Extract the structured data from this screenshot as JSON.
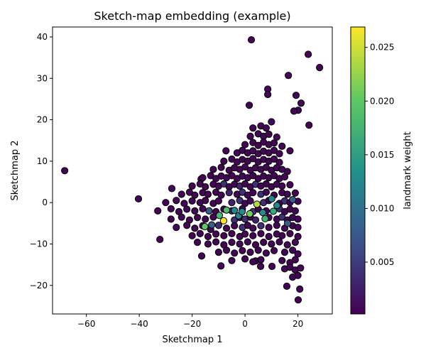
{
  "chart_data": {
    "type": "scatter",
    "title": "Sketch-map embedding (example)",
    "xlabel": "Sketchmap 1",
    "ylabel": "Sketchmap 2",
    "xlim": [
      -72.8,
      33.0
    ],
    "ylim": [
      -26.9,
      42.4
    ],
    "xticks": [
      -60,
      -40,
      -20,
      0,
      20
    ],
    "yticks": [
      -20,
      -10,
      0,
      10,
      20,
      30,
      40
    ],
    "grid": false,
    "colorbar": {
      "label": "landmark weight",
      "colormap": "viridis",
      "range": [
        0.00017,
        0.0269
      ],
      "ticks": [
        0.005,
        0.01,
        0.015,
        0.02,
        0.025
      ],
      "tick_labels": [
        "0.005",
        "0.010",
        "0.015",
        "0.020",
        "0.025"
      ]
    },
    "marker_edge_color": "#000000",
    "points": [
      [
        -68.2,
        7.7,
        0.0005
      ],
      [
        2.4,
        39.3,
        0.0005
      ],
      [
        23.9,
        35.8,
        0.0005
      ],
      [
        28.2,
        32.6,
        0.0005
      ],
      [
        16.4,
        30.7,
        0.0005
      ],
      [
        8.6,
        27.4,
        0.0005
      ],
      [
        8.6,
        26.1,
        0.0005
      ],
      [
        19.3,
        25.9,
        0.0005
      ],
      [
        21.2,
        24.0,
        0.0005
      ],
      [
        20.1,
        22.3,
        0.0005
      ],
      [
        18.5,
        22.1,
        0.0005
      ],
      [
        24.2,
        18.7,
        0.0005
      ],
      [
        1.6,
        23.5,
        0.0005
      ],
      [
        -40.3,
        0.9,
        0.0005
      ],
      [
        -32.2,
        -8.9,
        0.0005
      ],
      [
        -18,
        -9.6,
        0.0005
      ],
      [
        -16.4,
        -12.9,
        0.0005
      ],
      [
        -9.1,
        -15.3,
        0.0005
      ],
      [
        20.1,
        -23.5,
        0.0005
      ],
      [
        20.7,
        -20.9,
        0.0005
      ],
      [
        15.8,
        -20.2,
        0.0005
      ],
      [
        -27.7,
        3.4,
        0.0005
      ],
      [
        -7.2,
        12.5,
        0.0005
      ],
      [
        -16.6,
        5.7,
        0.0005
      ],
      [
        10.2,
        -15.4,
        0.0005
      ],
      [
        5.9,
        -15.4,
        0.0005
      ],
      [
        4.0,
        -14.1,
        0.0005
      ],
      [
        3,
        18,
        0.0005
      ],
      [
        6,
        18.5,
        0.0005
      ],
      [
        8,
        18,
        0.0005
      ],
      [
        10,
        19.5,
        0.0005
      ],
      [
        2,
        16,
        0.0005
      ],
      [
        5,
        16.6,
        0.0005
      ],
      [
        7,
        16,
        0.0005
      ],
      [
        9,
        16.5,
        0.0005
      ],
      [
        12,
        15.8,
        0.0005
      ],
      [
        0,
        14,
        0.0005
      ],
      [
        3,
        14.5,
        0.0005
      ],
      [
        5,
        13.8,
        0.0005
      ],
      [
        7,
        14.6,
        0.0005
      ],
      [
        9,
        14,
        0.0005
      ],
      [
        11,
        14.4,
        0.0005
      ],
      [
        14,
        13.6,
        0.0005
      ],
      [
        -3,
        12,
        0.0005
      ],
      [
        -1,
        12.6,
        0.0005
      ],
      [
        1,
        12,
        0.0005
      ],
      [
        3,
        12.5,
        0.0005
      ],
      [
        5,
        11.8,
        0.0005
      ],
      [
        7,
        12.4,
        0.0005
      ],
      [
        9,
        12,
        0.0005
      ],
      [
        11,
        12.6,
        0.0005
      ],
      [
        13,
        11.8,
        0.0005
      ],
      [
        17,
        12.5,
        0.0005
      ],
      [
        -8,
        10,
        0.0005
      ],
      [
        -5,
        10.5,
        0.0005
      ],
      [
        -3,
        9.8,
        0.0005
      ],
      [
        -1,
        10.4,
        0.0005
      ],
      [
        1,
        10,
        0.0005
      ],
      [
        3,
        10.6,
        0.0005
      ],
      [
        5,
        9.8,
        0.0005
      ],
      [
        7,
        10.4,
        0.0005
      ],
      [
        9,
        10,
        0.0005
      ],
      [
        11,
        10.5,
        0.0005
      ],
      [
        13,
        9.7,
        0.0005
      ],
      [
        -12,
        8,
        0.0005
      ],
      [
        -9,
        8.5,
        0.0005
      ],
      [
        -6,
        7.8,
        0.0005
      ],
      [
        -4,
        8.4,
        0.0005
      ],
      [
        -2,
        8,
        0.0005
      ],
      [
        0,
        8.6,
        0.0005
      ],
      [
        2,
        7.8,
        0.0005
      ],
      [
        4,
        8.4,
        0.0005
      ],
      [
        6,
        8,
        0.0005
      ],
      [
        8,
        8.5,
        0.0005
      ],
      [
        10,
        7.8,
        0.0005
      ],
      [
        12,
        8.4,
        0.0005
      ],
      [
        14,
        8,
        0.0005
      ],
      [
        16,
        7.5,
        0.0005
      ],
      [
        -16,
        6,
        0.0005
      ],
      [
        -13,
        6.5,
        0.0005
      ],
      [
        -11,
        5.8,
        0.0005
      ],
      [
        -9,
        6.4,
        0.0005
      ],
      [
        -7,
        6,
        0.0005
      ],
      [
        -5,
        6.5,
        0.0005
      ],
      [
        -3,
        5.8,
        0.0005
      ],
      [
        -1,
        6.4,
        0.0005
      ],
      [
        1,
        6,
        0.0005
      ],
      [
        3,
        6.5,
        0.0005
      ],
      [
        5,
        5.8,
        0.0005
      ],
      [
        7,
        6.4,
        0.0005
      ],
      [
        9,
        6,
        0.0005
      ],
      [
        11,
        6.5,
        0.0005
      ],
      [
        13,
        5.8,
        0.0005
      ],
      [
        15,
        6.2,
        0.0005
      ],
      [
        -20,
        4,
        0.0005
      ],
      [
        -17,
        4.5,
        0.0005
      ],
      [
        -15,
        3.8,
        0.0005
      ],
      [
        -12,
        4.4,
        0.0005
      ],
      [
        -10,
        4,
        0.0005
      ],
      [
        -8,
        4.5,
        0.004
      ],
      [
        -6,
        3.8,
        0.0005
      ],
      [
        -4,
        4.4,
        0.0005
      ],
      [
        -2,
        4,
        0.003
      ],
      [
        0,
        4.5,
        0.0005
      ],
      [
        2,
        3.8,
        0.0005
      ],
      [
        4,
        4.4,
        0.004
      ],
      [
        6,
        4,
        0.0005
      ],
      [
        8,
        4.5,
        0.0005
      ],
      [
        10,
        3.8,
        0.0005
      ],
      [
        12,
        4.4,
        0.0005
      ],
      [
        14,
        4,
        0.0005
      ],
      [
        17,
        4.3,
        0.0005
      ],
      [
        -24,
        2,
        0.0005
      ],
      [
        -21,
        2.5,
        0.0005
      ],
      [
        -19,
        1.8,
        0.0005
      ],
      [
        -16,
        2.4,
        0.0005
      ],
      [
        -14,
        2,
        0.0005
      ],
      [
        -11,
        2.5,
        0.0005
      ],
      [
        -9,
        1.8,
        0.0005
      ],
      [
        -6,
        2.4,
        0.003
      ],
      [
        -3,
        2,
        0.0005
      ],
      [
        -1,
        2.5,
        0.004
      ],
      [
        1,
        1.8,
        0.0005
      ],
      [
        3,
        2.4,
        0.0005
      ],
      [
        6,
        2,
        0.004
      ],
      [
        8,
        2.5,
        0.0005
      ],
      [
        11,
        1.8,
        0.0005
      ],
      [
        14,
        2.4,
        0.0005
      ],
      [
        16,
        2,
        0.0005
      ],
      [
        19,
        2.3,
        0.0005
      ],
      [
        -30,
        0,
        0.0005
      ],
      [
        -26,
        0.5,
        0.0005
      ],
      [
        -23,
        -0.2,
        0.0005
      ],
      [
        -20,
        0.4,
        0.0005
      ],
      [
        -17,
        0,
        0.0005
      ],
      [
        -15,
        0.5,
        0.0005
      ],
      [
        -12,
        -0.2,
        0.0005
      ],
      [
        -10,
        0.4,
        0.0005
      ],
      [
        -5,
        0,
        0.003
      ],
      [
        -2,
        0.5,
        0.004
      ],
      [
        0,
        -0.2,
        0.0005
      ],
      [
        2,
        0.4,
        0.0005
      ],
      [
        7,
        0,
        0.004
      ],
      [
        9,
        0.5,
        0.0005
      ],
      [
        13,
        -0.2,
        0.0005
      ],
      [
        15,
        0.4,
        0.004
      ],
      [
        17,
        0,
        0.0005
      ],
      [
        20,
        0.3,
        0.0005
      ],
      [
        -33,
        -2,
        0.0005
      ],
      [
        -28,
        -1.5,
        0.0005
      ],
      [
        -25,
        -2.2,
        0.0005
      ],
      [
        -22,
        -1.6,
        0.0005
      ],
      [
        -19,
        -2,
        0.0005
      ],
      [
        -16,
        -1.5,
        0.0005
      ],
      [
        -11,
        -2.2,
        0.0005
      ],
      [
        -8,
        -1.6,
        0.0005
      ],
      [
        -5,
        -2,
        0.003
      ],
      [
        -1,
        -1.5,
        0.0005
      ],
      [
        3,
        -2.2,
        0.004
      ],
      [
        5,
        -1.6,
        0.0005
      ],
      [
        8,
        -2,
        0.0005
      ],
      [
        13,
        -1.5,
        0.004
      ],
      [
        15,
        -2.2,
        0.0005
      ],
      [
        17,
        -1.6,
        0.0005
      ],
      [
        19,
        -2,
        0.0005
      ],
      [
        -28,
        -4,
        0.0005
      ],
      [
        -24,
        -3.5,
        0.0005
      ],
      [
        -21,
        -4.2,
        0.0005
      ],
      [
        -18,
        -3.6,
        0.0005
      ],
      [
        -15,
        -4,
        0.0005
      ],
      [
        -12,
        -3.5,
        0.0005
      ],
      [
        -4,
        -4.2,
        0.004
      ],
      [
        -2,
        -3.6,
        0.0005
      ],
      [
        0,
        -4,
        0.004
      ],
      [
        2,
        -3.5,
        0.0005
      ],
      [
        4,
        -4.2,
        0.003
      ],
      [
        9,
        -3.6,
        0.0005
      ],
      [
        12,
        -4,
        0.0005
      ],
      [
        14,
        -3.5,
        0.004
      ],
      [
        16,
        -4.2,
        0.0005
      ],
      [
        18,
        -3.6,
        0.0005
      ],
      [
        20,
        -4,
        0.0005
      ],
      [
        -26,
        -6,
        0.0005
      ],
      [
        -22,
        -5.5,
        0.0005
      ],
      [
        -19,
        -6.2,
        0.0005
      ],
      [
        -16,
        -5.6,
        0.0005
      ],
      [
        -13,
        -6.5,
        0.0005
      ],
      [
        -10,
        -5.5,
        0.004
      ],
      [
        -7,
        -6.2,
        0.0005
      ],
      [
        -4,
        -5.6,
        0.0005
      ],
      [
        -1,
        -6,
        0.004
      ],
      [
        1,
        -5.5,
        0.0005
      ],
      [
        3,
        -6.2,
        0.0005
      ],
      [
        6,
        -5.6,
        0.004
      ],
      [
        9,
        -6,
        0.0005
      ],
      [
        12,
        -5.5,
        0.0005
      ],
      [
        15,
        -6.2,
        0.0005
      ],
      [
        18,
        -5.6,
        0.0005
      ],
      [
        20,
        -6,
        0.0005
      ],
      [
        -20,
        -8,
        0.0005
      ],
      [
        -17,
        -7.5,
        0.0005
      ],
      [
        -14,
        -8.2,
        0.0005
      ],
      [
        -11,
        -7.6,
        0.0005
      ],
      [
        -8,
        -8,
        0.0005
      ],
      [
        -5,
        -7.5,
        0.0005
      ],
      [
        -2,
        -8.2,
        0.0005
      ],
      [
        0,
        -7.6,
        0.0005
      ],
      [
        3,
        -8,
        0.0005
      ],
      [
        6,
        -7.5,
        0.0005
      ],
      [
        9,
        -8.2,
        0.0005
      ],
      [
        12,
        -7.6,
        0.0005
      ],
      [
        14,
        -8,
        0.0005
      ],
      [
        17,
        -7.5,
        0.0005
      ],
      [
        20,
        -8.2,
        0.0005
      ],
      [
        -14,
        -10,
        0.0005
      ],
      [
        -11,
        -9.5,
        0.0005
      ],
      [
        -8,
        -10.2,
        0.0005
      ],
      [
        -5,
        -9.6,
        0.0005
      ],
      [
        -2,
        -10,
        0.0005
      ],
      [
        1,
        -9.5,
        0.0005
      ],
      [
        4,
        -10.2,
        0.0005
      ],
      [
        7,
        -9.6,
        0.0005
      ],
      [
        10,
        -10,
        0.0005
      ],
      [
        13,
        -9.5,
        0.0005
      ],
      [
        16,
        -10.2,
        0.0005
      ],
      [
        19,
        -9.6,
        0.0005
      ],
      [
        -10,
        -12,
        0.0005
      ],
      [
        -7,
        -11.5,
        0.0005
      ],
      [
        -4,
        -12.2,
        0.0005
      ],
      [
        -1,
        -11.6,
        0.0005
      ],
      [
        2,
        -12,
        0.0005
      ],
      [
        5,
        -11.5,
        0.0005
      ],
      [
        8,
        -12.2,
        0.0005
      ],
      [
        11,
        -11.6,
        0.0005
      ],
      [
        15,
        -12,
        0.0005
      ],
      [
        18,
        -11.5,
        0.0005
      ],
      [
        20,
        -12.4,
        0.0005
      ],
      [
        -5,
        -14,
        0.0005
      ],
      [
        0,
        -13.6,
        0.0005
      ],
      [
        3,
        -14.3,
        0.0005
      ],
      [
        6,
        -13.8,
        0.0005
      ],
      [
        14,
        -14,
        0.0005
      ],
      [
        17,
        -14.5,
        0.0005
      ],
      [
        19,
        -13.8,
        0.0005
      ],
      [
        15,
        -16,
        0.0005
      ],
      [
        17,
        -15.6,
        0.0005
      ],
      [
        19,
        -16.3,
        0.0005
      ],
      [
        21,
        -15.8,
        0.0005
      ],
      [
        18,
        -18,
        0.0005
      ],
      [
        20,
        -17.6,
        0.0005
      ],
      [
        -13.6,
        -2,
        0.008
      ],
      [
        -12.6,
        -5.4,
        0.008
      ],
      [
        16.1,
        -5.0,
        0.008
      ],
      [
        18,
        0.7,
        0.008
      ],
      [
        12.1,
        -0.7,
        0.0125
      ],
      [
        10.1,
        0.9,
        0.012
      ],
      [
        6.7,
        -2.4,
        0.013
      ],
      [
        -2.4,
        -3.2,
        0.012
      ],
      [
        -4,
        -1.9,
        0.0125
      ],
      [
        -1.1,
        -2.2,
        0.013
      ],
      [
        -15.2,
        -5.8,
        0.02
      ],
      [
        -7,
        -1.8,
        0.019
      ],
      [
        1.8,
        -2.7,
        0.021
      ],
      [
        7.6,
        -3.9,
        0.017
      ],
      [
        10.7,
        -2.1,
        0.016
      ],
      [
        -9.7,
        -3.1,
        0.018
      ],
      [
        4.5,
        -0.4,
        0.024
      ],
      [
        -8.1,
        -4.4,
        0.027
      ]
    ]
  }
}
